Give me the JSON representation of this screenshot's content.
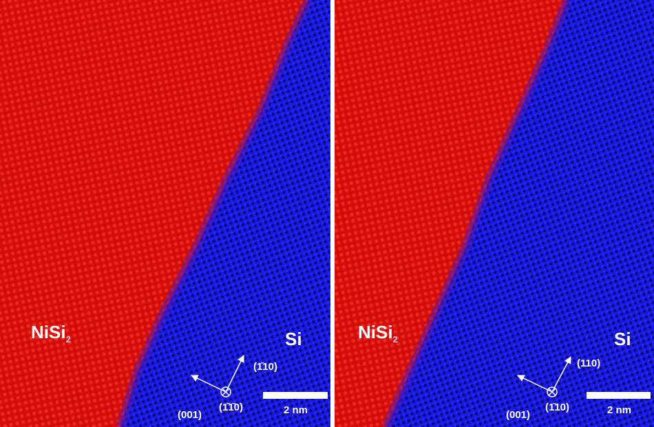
{
  "panels": [
    {
      "material_left": "NiSi",
      "material_left_sub": "2",
      "material_right": "Si",
      "direction_left": "(001)",
      "direction_up": "(1̄10)",
      "direction_down": "(1̄1̄0)",
      "scale_bar": "2 nm"
    },
    {
      "material_left": "NiSi",
      "material_left_sub": "2",
      "material_right": "Si",
      "direction_left": "(001)",
      "direction_up": "(110)",
      "direction_down": "(1̄10)",
      "scale_bar": "2 nm"
    }
  ]
}
